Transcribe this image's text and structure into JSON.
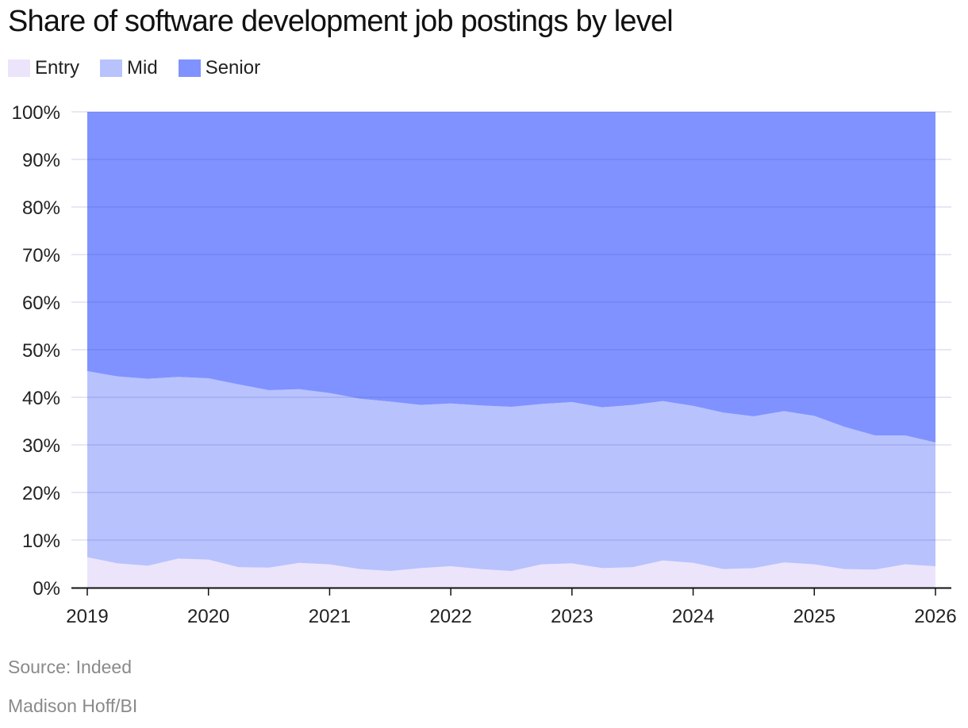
{
  "title": "Share of software development job postings by level",
  "legend": [
    {
      "label": "Entry",
      "color": "#ece4fb"
    },
    {
      "label": "Mid",
      "color": "#b8c2fd"
    },
    {
      "label": "Senior",
      "color": "#7f92ff"
    }
  ],
  "source": "Source: Indeed",
  "credit": "Madison Hoff/BI",
  "chart_data": {
    "type": "area",
    "stacked": true,
    "title": "Share of software development job postings by level",
    "x": [
      "2019-01",
      "2019-04",
      "2019-07",
      "2019-10",
      "2020-01",
      "2020-04",
      "2020-07",
      "2020-10",
      "2021-01",
      "2021-04",
      "2021-07",
      "2021-10",
      "2022-01",
      "2022-04",
      "2022-07",
      "2022-10",
      "2023-01",
      "2023-04",
      "2023-07",
      "2023-10",
      "2024-01",
      "2024-04",
      "2024-07",
      "2024-10",
      "2025-01",
      "2025-04",
      "2025-07",
      "2025-10",
      "2026-01"
    ],
    "series": [
      {
        "name": "Entry",
        "color": "#ece4fb",
        "values": [
          6.4,
          5.1,
          4.6,
          6.1,
          5.9,
          4.3,
          4.2,
          5.2,
          4.9,
          3.9,
          3.5,
          4.1,
          4.5,
          3.9,
          3.5,
          4.9,
          5.1,
          4.1,
          4.3,
          5.7,
          5.2,
          3.9,
          4.1,
          5.3,
          4.9,
          3.9,
          3.8,
          4.9,
          4.5
        ]
      },
      {
        "name": "Mid",
        "color": "#b8c2fd",
        "values": [
          39.1,
          39.3,
          39.3,
          38.2,
          38.1,
          38.4,
          37.3,
          36.5,
          36.0,
          35.8,
          35.6,
          34.3,
          34.2,
          34.4,
          34.5,
          33.7,
          33.9,
          33.8,
          34.1,
          33.5,
          33.0,
          32.9,
          31.9,
          31.8,
          31.2,
          29.9,
          28.2,
          27.1,
          26.0
        ]
      },
      {
        "name": "Senior",
        "color": "#7f92ff",
        "values": [
          54.5,
          55.6,
          56.1,
          55.7,
          56.0,
          57.3,
          58.5,
          58.3,
          59.1,
          60.3,
          60.9,
          61.6,
          61.3,
          61.7,
          62.0,
          61.4,
          61.0,
          62.1,
          61.6,
          60.8,
          61.8,
          63.2,
          64.0,
          62.9,
          63.9,
          66.2,
          68.0,
          68.0,
          69.5
        ]
      }
    ],
    "x_tick_labels": [
      "2019",
      "2020",
      "2021",
      "2022",
      "2023",
      "2024",
      "2025",
      "2026"
    ],
    "y_tick_labels": [
      "0%",
      "10%",
      "20%",
      "30%",
      "40%",
      "50%",
      "60%",
      "70%",
      "80%",
      "90%",
      "100%"
    ],
    "xlim": [
      "2019-01",
      "2026-01"
    ],
    "ylim": [
      0,
      100
    ],
    "grid": true,
    "legend_position": "top-left"
  }
}
